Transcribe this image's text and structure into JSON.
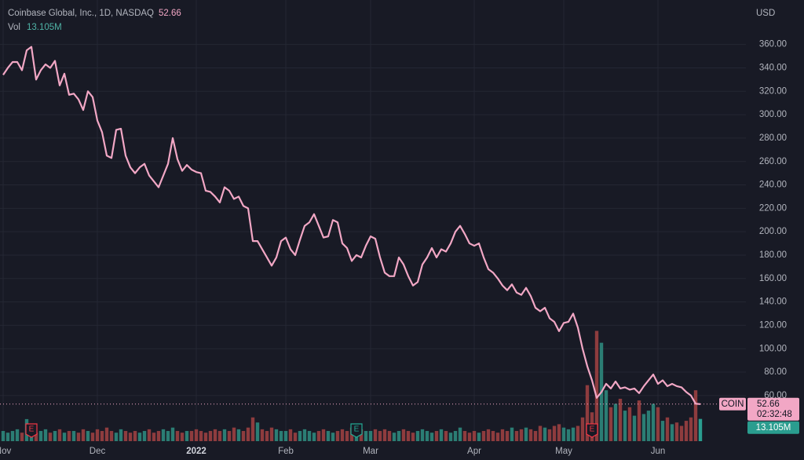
{
  "chart_data": {
    "type": "line",
    "title": "Coinbase Global, Inc., 1D, NASDAQ",
    "symbol": "COIN",
    "currency": "USD",
    "countdown": "02:32:48",
    "categories": [
      "Nov",
      null,
      null,
      null,
      null,
      null,
      null,
      null,
      null,
      null,
      null,
      null,
      null,
      null,
      null,
      null,
      null,
      null,
      null,
      null,
      "Dec",
      null,
      null,
      null,
      null,
      null,
      null,
      null,
      null,
      null,
      null,
      null,
      null,
      null,
      null,
      null,
      null,
      null,
      null,
      null,
      null,
      "2022",
      null,
      null,
      null,
      null,
      null,
      null,
      null,
      null,
      null,
      null,
      null,
      null,
      null,
      null,
      null,
      null,
      null,
      null,
      "Feb",
      null,
      null,
      null,
      null,
      null,
      null,
      null,
      null,
      null,
      null,
      null,
      null,
      null,
      null,
      null,
      null,
      null,
      "Mar",
      null,
      null,
      null,
      null,
      null,
      null,
      null,
      null,
      null,
      null,
      null,
      null,
      null,
      null,
      null,
      null,
      null,
      null,
      null,
      null,
      null,
      "Apr",
      null,
      null,
      null,
      null,
      null,
      null,
      null,
      null,
      null,
      null,
      null,
      null,
      null,
      null,
      null,
      null,
      null,
      null,
      "May",
      null,
      null,
      null,
      null,
      null,
      null,
      null,
      null,
      null,
      null,
      null,
      null,
      null,
      null,
      null,
      null,
      null,
      null,
      null,
      "Jun",
      null,
      null,
      null,
      null,
      null,
      null,
      null,
      null,
      null
    ],
    "series": [
      {
        "name": "COIN",
        "color": "#f2a7c5",
        "values": [
          334,
          340,
          345,
          345,
          338,
          355,
          358,
          330,
          338,
          343,
          340,
          346,
          325,
          335,
          317,
          318,
          313,
          304,
          320,
          315,
          295,
          285,
          265,
          263,
          287,
          288,
          265,
          255,
          250,
          255,
          258,
          248,
          243,
          238,
          248,
          258,
          280,
          262,
          252,
          257,
          253,
          251,
          250,
          235,
          234,
          230,
          225,
          238,
          235,
          228,
          230,
          222,
          220,
          192,
          192,
          185,
          178,
          171,
          178,
          192,
          195,
          185,
          180,
          193,
          205,
          208,
          215,
          205,
          195,
          196,
          210,
          208,
          190,
          186,
          175,
          180,
          178,
          188,
          196,
          194,
          178,
          165,
          162,
          162,
          178,
          172,
          162,
          154,
          157,
          172,
          178,
          186,
          178,
          185,
          183,
          190,
          200,
          205,
          198,
          190,
          188,
          190,
          178,
          168,
          165,
          160,
          154,
          150,
          155,
          148,
          146,
          152,
          145,
          135,
          132,
          135,
          126,
          123,
          115,
          122,
          123,
          130,
          118,
          100,
          85,
          73,
          58,
          63,
          70,
          66,
          72,
          66,
          67,
          65,
          66,
          62,
          68,
          73,
          78,
          70,
          73,
          68,
          70,
          68,
          67,
          63,
          60,
          53,
          52.66
        ]
      },
      {
        "name": "Vol",
        "axis": "y2",
        "up_color": "#2b7d74",
        "down_color": "#8e3c3e",
        "last_color": "#2a9d8f",
        "last_value_label": "13.105M",
        "values": [
          6,
          5,
          6,
          7,
          5,
          13,
          6,
          5,
          6,
          7,
          5,
          6,
          7,
          5,
          6,
          6,
          5,
          7,
          6,
          5,
          7,
          6,
          8,
          6,
          5,
          7,
          6,
          5,
          6,
          5,
          6,
          7,
          5,
          6,
          7,
          6,
          8,
          6,
          5,
          6,
          6,
          7,
          6,
          5,
          6,
          7,
          6,
          7,
          6,
          8,
          7,
          6,
          8,
          14,
          11,
          7,
          6,
          8,
          7,
          6,
          6,
          7,
          5,
          6,
          7,
          6,
          5,
          6,
          7,
          6,
          5,
          6,
          7,
          6,
          8,
          10,
          7,
          6,
          6,
          7,
          6,
          7,
          6,
          5,
          6,
          7,
          6,
          5,
          6,
          7,
          6,
          5,
          6,
          7,
          6,
          5,
          6,
          8,
          6,
          5,
          6,
          5,
          6,
          7,
          6,
          5,
          7,
          6,
          8,
          6,
          7,
          8,
          7,
          6,
          9,
          8,
          7,
          9,
          10,
          8,
          7,
          8,
          9,
          14,
          33,
          17,
          65,
          58,
          30,
          20,
          22,
          25,
          18,
          20,
          15,
          24,
          16,
          18,
          22,
          20,
          12,
          14,
          10,
          11,
          9,
          12,
          14,
          30,
          13.105
        ]
      }
    ],
    "events": [
      {
        "label": "E",
        "index": 6,
        "color": "#f23645"
      },
      {
        "label": "E",
        "index": 75,
        "color": "#22ab94"
      },
      {
        "label": "E",
        "index": 125,
        "color": "#f23645"
      }
    ],
    "ylim": [
      21,
      398
    ],
    "y2lim": [
      0,
      260
    ],
    "yticks": [
      {
        "value": 60,
        "label": "60.00"
      },
      {
        "value": 80,
        "label": "80.00"
      },
      {
        "value": 100,
        "label": "100.00"
      },
      {
        "value": 120,
        "label": "120.00"
      },
      {
        "value": 140,
        "label": "140.00"
      },
      {
        "value": 160,
        "label": "160.00"
      },
      {
        "value": 180,
        "label": "180.00"
      },
      {
        "value": 200,
        "label": "200.00"
      },
      {
        "value": 220,
        "label": "220.00"
      },
      {
        "value": 240,
        "label": "240.00"
      },
      {
        "value": 260,
        "label": "260.00"
      },
      {
        "value": 280,
        "label": "280.00"
      },
      {
        "value": 300,
        "label": "300.00"
      },
      {
        "value": 320,
        "label": "320.00"
      },
      {
        "value": 340,
        "label": "340.00"
      },
      {
        "value": 360,
        "label": "360.00"
      }
    ],
    "grid": true
  }
}
